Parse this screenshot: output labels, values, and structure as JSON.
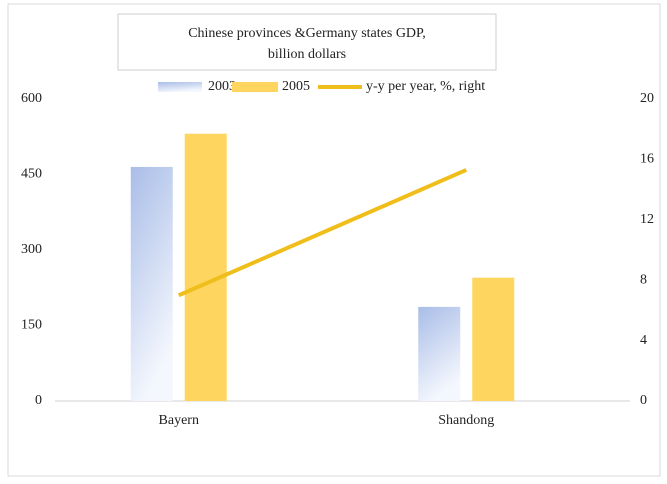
{
  "chart_data": {
    "type": "bar",
    "title": "Chinese provinces &Germany states GDP, billion dollars",
    "categories": [
      "Bayern",
      "Shandong"
    ],
    "series": [
      {
        "name": "2003",
        "color": "#a9bde8",
        "values": [
          465,
          187
        ]
      },
      {
        "name": "2005",
        "color": "#fdd55f",
        "values": [
          531,
          245
        ]
      },
      {
        "name": "y-y per year, %, right",
        "color": "#f0be1a",
        "values": [
          7.0,
          15.3
        ],
        "axis": "y2",
        "type": "line"
      }
    ],
    "ylim": [
      0,
      600
    ],
    "yticks": [
      0,
      150,
      300,
      450,
      600
    ],
    "y2lim": [
      0,
      20
    ],
    "y2ticks": [
      0,
      4,
      8,
      12,
      16,
      20
    ]
  }
}
